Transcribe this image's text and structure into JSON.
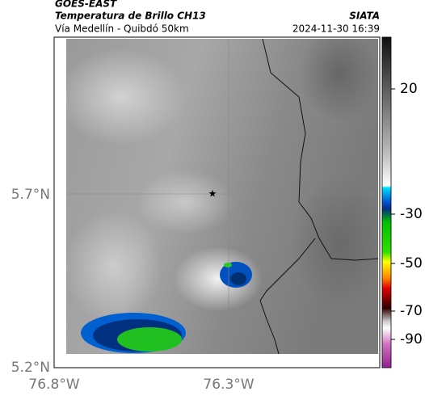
{
  "header": {
    "title": "GOES-EAST",
    "subtitle": "Temperatura de Brillo CH13",
    "region": "Vía Medellín - Quibdó 50km",
    "source": "SIATA",
    "datetime": "2024-11-30 16:39"
  },
  "map": {
    "lat_labels": [
      "5.7°N",
      "5.2°N"
    ],
    "lon_labels": [
      "76.8°W",
      "76.3°W"
    ]
  },
  "colorbar": {
    "tick_labels": [
      "20",
      "-30",
      "-50",
      "-70",
      "-90"
    ]
  }
}
